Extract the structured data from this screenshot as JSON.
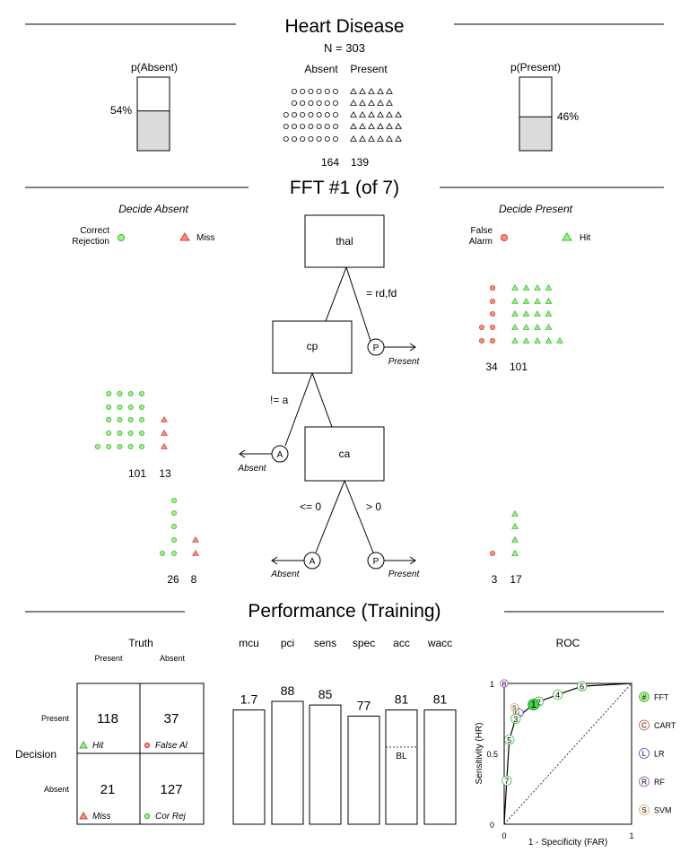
{
  "header": {
    "title": "Heart Disease",
    "n_label": "N = 303",
    "p_absent_label": "p(Absent)",
    "p_present_label": "p(Present)",
    "p_absent_value": "54%",
    "p_present_value": "46%",
    "p_absent_fraction": 0.54,
    "p_present_fraction": 0.46,
    "absent_label": "Absent",
    "present_label": "Present",
    "absent_count": "164",
    "present_count": "139",
    "absent_n": 164,
    "present_n": 139
  },
  "tree": {
    "title": "FFT #1 (of 7)",
    "decide_absent": "Decide Absent",
    "decide_present": "Decide Present",
    "legend": {
      "correct_rejection": "Correct\nRejection",
      "miss": "Miss",
      "false_alarm": "False\nAlarm",
      "hit": "Hit"
    },
    "nodes": [
      "thal",
      "cp",
      "ca"
    ],
    "edges": {
      "thal_present": "= rd,fd",
      "cp_absent": "!= a",
      "ca_absent": "<= 0",
      "ca_present": "> 0"
    },
    "exit_absent_letter": "A",
    "exit_present_letter": "P",
    "exit_absent_label": "Absent",
    "exit_present_label": "Present",
    "level1_present": {
      "false_alarm": 34,
      "hit": 101,
      "fa_label": "34",
      "hit_label": "101"
    },
    "level2_absent": {
      "correct_rejection": 101,
      "miss": 13,
      "cr_label": "101",
      "miss_label": "13"
    },
    "level3_absent": {
      "correct_rejection": 26,
      "miss": 8,
      "cr_label": "26",
      "miss_label": "8"
    },
    "level3_present": {
      "false_alarm": 3,
      "hit": 17,
      "fa_label": "3",
      "hit_label": "17"
    }
  },
  "performance": {
    "title": "Performance (Training)",
    "confusion": {
      "truth_label": "Truth",
      "decision_label": "Decision",
      "present": "Present",
      "absent": "Absent",
      "hit": "118",
      "false_alarm": "37",
      "miss": "21",
      "correct_rejection": "127",
      "hit_label": "Hit",
      "fa_label": "False Al",
      "miss_label": "Miss",
      "cr_label": "Cor Rej"
    },
    "bars": [
      {
        "name": "mcu",
        "value": 1.7,
        "label": "1.7",
        "fill": 0.93
      },
      {
        "name": "pci",
        "value": 88,
        "label": "88",
        "fill": 1.0
      },
      {
        "name": "sens",
        "value": 85,
        "label": "85",
        "fill": 0.97
      },
      {
        "name": "spec",
        "value": 77,
        "label": "77",
        "fill": 0.88
      },
      {
        "name": "acc",
        "value": 81,
        "label": "81",
        "fill": 0.93,
        "baseline_label": "BL"
      },
      {
        "name": "wacc",
        "value": 81,
        "label": "81",
        "fill": 0.93
      }
    ],
    "roc": {
      "title": "ROC",
      "xlabel": "1 - Specificity (FAR)",
      "ylabel": "Sensitivity (HR)",
      "x_ticks": [
        "0",
        "1"
      ],
      "y_ticks": [
        "0",
        "0.5",
        "1"
      ],
      "fft_points": [
        {
          "label": "1",
          "far": 0.23,
          "hr": 0.85
        },
        {
          "label": "2",
          "far": 0.27,
          "hr": 0.87
        },
        {
          "label": "3",
          "far": 0.09,
          "hr": 0.75
        },
        {
          "label": "4",
          "far": 0.42,
          "hr": 0.92
        },
        {
          "label": "5",
          "far": 0.04,
          "hr": 0.6
        },
        {
          "label": "6",
          "far": 0.61,
          "hr": 0.98
        },
        {
          "label": "7",
          "far": 0.02,
          "hr": 0.31
        }
      ],
      "models": [
        {
          "letter": "C",
          "label": "CART",
          "color": "#e0463c",
          "far": 0.1,
          "hr": 0.8
        },
        {
          "letter": "L",
          "label": "LR",
          "color": "#3344d6",
          "far": 0.12,
          "hr": 0.79
        },
        {
          "letter": "R",
          "label": "RF",
          "color": "#9a3fb8",
          "far": 0.0,
          "hr": 1.0
        },
        {
          "letter": "S",
          "label": "SVM",
          "color": "#e8a33d",
          "far": 0.08,
          "hr": 0.83
        }
      ],
      "fft_legend_letter": "#",
      "fft_legend_label": "FFT"
    }
  },
  "colors": {
    "green_fill": "#a8ee88",
    "green_stroke": "#33bb33",
    "red_fill": "#ff8c80",
    "red_stroke": "#cc4433",
    "bar_fill": "#dcdcdc"
  }
}
